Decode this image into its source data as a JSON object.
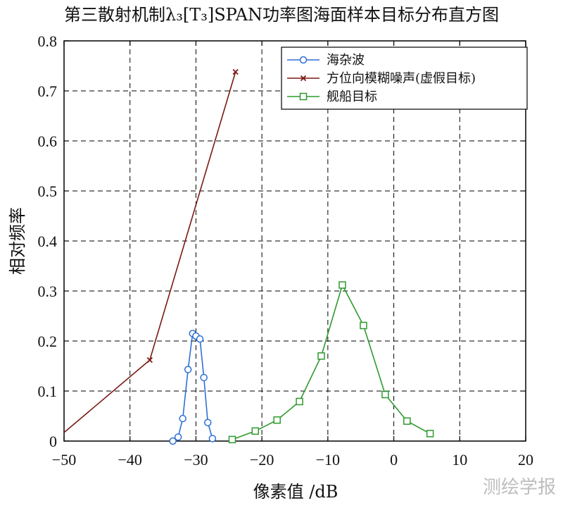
{
  "chart_data": {
    "type": "line",
    "title": "第三散射机制λ₃[T₃]SPAN功率图海面样本目标分布直方图",
    "xlabel": "像素值 /dB",
    "ylabel": "相对频率",
    "xlim": [
      -50,
      20
    ],
    "ylim": [
      0,
      0.8
    ],
    "xticks": [
      -50,
      -40,
      -30,
      -20,
      -10,
      0,
      10,
      20
    ],
    "yticks": [
      0,
      0.1,
      0.2,
      0.3,
      0.4,
      0.5,
      0.6,
      0.7,
      0.8
    ],
    "xtick_labels": [
      "−50",
      "−40",
      "−30",
      "−20",
      "−10",
      "0",
      "10",
      "20"
    ],
    "ytick_labels": [
      "0",
      "0.1",
      "0.2",
      "0.3",
      "0.4",
      "0.5",
      "0.6",
      "0.7",
      "0.8"
    ],
    "grid": true,
    "legend_position": "top-right",
    "series": [
      {
        "name": "海杂波",
        "color": "#2e6fd6",
        "marker": "circle",
        "x": [
          -33.5,
          -32.7,
          -32.0,
          -31.2,
          -30.5,
          -30.0,
          -29.4,
          -28.8,
          -28.2,
          -27.5
        ],
        "y": [
          0.0,
          0.008,
          0.045,
          0.143,
          0.215,
          0.21,
          0.204,
          0.127,
          0.037,
          0.005
        ]
      },
      {
        "name": "方位向模糊噪声(虚假目标)",
        "color": "#7a1a14",
        "marker": "x",
        "x": [
          -50.0,
          -37.0,
          -24.0
        ],
        "y": [
          0.017,
          0.162,
          0.738
        ]
      },
      {
        "name": "舰船目标",
        "color": "#2e9a2e",
        "marker": "square",
        "x": [
          -24.5,
          -21.0,
          -17.7,
          -14.3,
          -11.0,
          -7.8,
          -4.6,
          -1.3,
          2.0,
          5.5
        ],
        "y": [
          0.003,
          0.02,
          0.042,
          0.079,
          0.17,
          0.312,
          0.231,
          0.093,
          0.04,
          0.015
        ]
      }
    ]
  },
  "watermark": "测绘学报"
}
